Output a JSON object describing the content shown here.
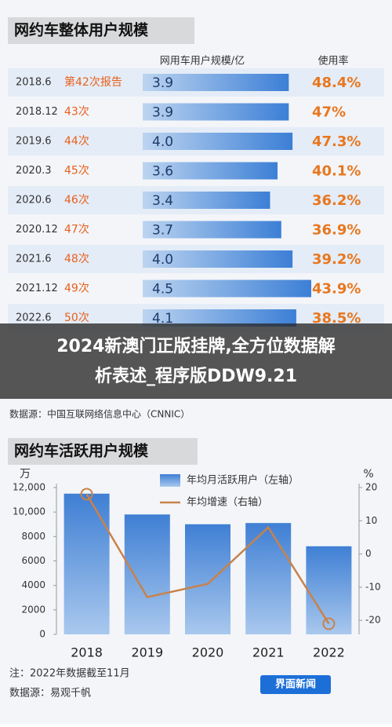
{
  "chart_data": [
    {
      "type": "bar",
      "title": "网约车整体用户规模",
      "value_header": "网用车用户规模/亿",
      "rate_header": "使用率",
      "categories": [
        "2018.6",
        "2018.12",
        "2019.6",
        "2020.3",
        "2020.6",
        "2020.12",
        "2021.6",
        "2021.12",
        "2022.6"
      ],
      "reports": [
        "第42次报告",
        "43次",
        "44次",
        "45次",
        "46次",
        "47次",
        "48次",
        "49次",
        "50次"
      ],
      "values": [
        3.9,
        3.9,
        4.0,
        3.6,
        3.4,
        3.7,
        4.0,
        4.5,
        4.1
      ],
      "value_labels": [
        "3.9",
        "3.9",
        "4.0",
        "3.6",
        "3.4",
        "3.7",
        "4.0",
        "4.5",
        "4.1"
      ],
      "rates": [
        48.4,
        47,
        47.3,
        40.1,
        36.2,
        36.9,
        39.2,
        43.9,
        38.5
      ],
      "rate_labels": [
        "48.4%",
        "47%",
        "47.3%",
        "40.1%",
        "36.2%",
        "36.9%",
        "39.2%",
        "43.9%",
        "38.5%"
      ],
      "color": "#3c7fd6",
      "rate_color": "#e8771e",
      "report_color": "#e8601c",
      "source": "数据源：中国互联网络信息中心（CNNIC）"
    },
    {
      "type": "bar",
      "title": "网约车活跃用户规模",
      "y_unit": "万",
      "y2_unit": "%",
      "categories": [
        "2018",
        "2019",
        "2020",
        "2021",
        "2022"
      ],
      "series": [
        {
          "name": "年均月活跃用户（左轴）",
          "type": "bar",
          "color": "#4a86d8",
          "values": [
            11500,
            9800,
            9000,
            9100,
            7200
          ]
        },
        {
          "name": "年均增速（右轴）",
          "type": "line",
          "axis": "y2",
          "color": "#c8824a",
          "values": [
            18,
            -13,
            -9,
            8,
            -21
          ]
        }
      ],
      "ylim": [
        0,
        12000
      ],
      "yticks": [
        0,
        2000,
        4000,
        6000,
        8000,
        {
          "value": 10000,
          "label": "10,000"
        },
        {
          "value": 12000,
          "label": "12,000"
        }
      ],
      "y2lim": [
        -24.2,
        20
      ],
      "y2ticks": [
        -20,
        -10,
        0,
        10,
        20
      ],
      "notes": [
        "注：2022年数据截至11月",
        "数据源：易观千帆"
      ]
    }
  ],
  "banner": "2024新澳门正版挂牌,全方位数据解析表述_程序版DDW9.21",
  "logo": "界面新闻"
}
